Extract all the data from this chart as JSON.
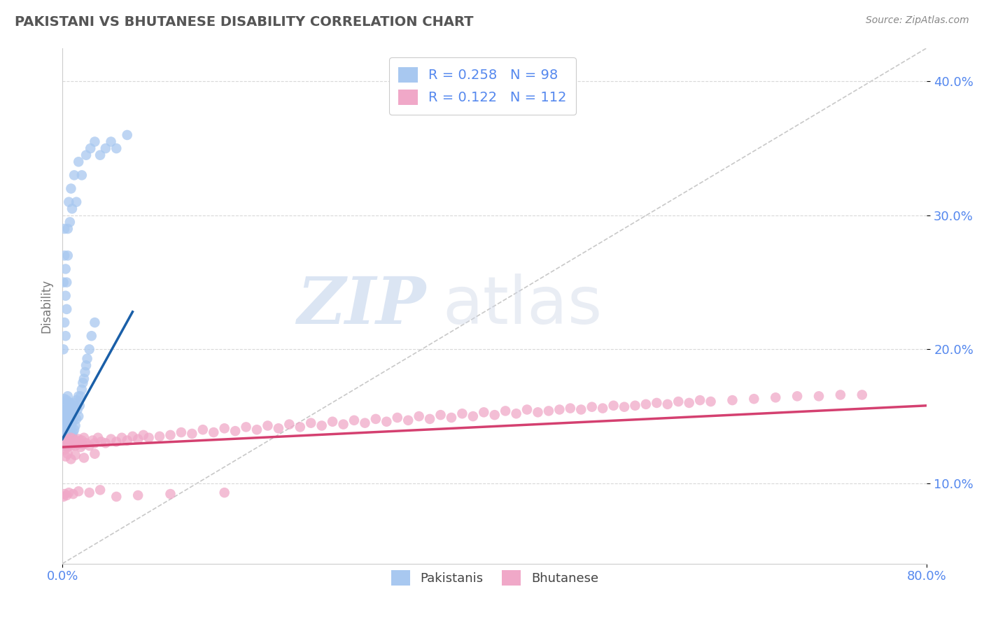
{
  "title": "PAKISTANI VS BHUTANESE DISABILITY CORRELATION CHART",
  "source": "Source: ZipAtlas.com",
  "xmin": 0.0,
  "xmax": 0.8,
  "ymin": 0.04,
  "ymax": 0.425,
  "pakistani_color": "#a8c8f0",
  "bhutanese_color": "#f0a8c8",
  "pakistani_line_color": "#1a5fa8",
  "bhutanese_line_color": "#d44070",
  "pakistani_R": 0.258,
  "pakistani_N": 98,
  "bhutanese_R": 0.122,
  "bhutanese_N": 112,
  "legend_label_1": "Pakistanis",
  "legend_label_2": "Bhutanese",
  "watermark_zip": "ZIP",
  "watermark_atlas": "atlas",
  "background_color": "#ffffff",
  "grid_color": "#d8d8d8",
  "title_color": "#555555",
  "axis_label_color": "#5588ee",
  "ylabel": "Disability",
  "diag_color": "#bbbbbb",
  "pakistani_x": [
    0.001,
    0.001,
    0.001,
    0.001,
    0.002,
    0.002,
    0.002,
    0.002,
    0.002,
    0.002,
    0.002,
    0.002,
    0.003,
    0.003,
    0.003,
    0.003,
    0.003,
    0.003,
    0.003,
    0.004,
    0.004,
    0.004,
    0.004,
    0.004,
    0.004,
    0.004,
    0.005,
    0.005,
    0.005,
    0.005,
    0.005,
    0.005,
    0.006,
    0.006,
    0.006,
    0.006,
    0.006,
    0.007,
    0.007,
    0.007,
    0.007,
    0.008,
    0.008,
    0.008,
    0.009,
    0.009,
    0.009,
    0.01,
    0.01,
    0.01,
    0.011,
    0.011,
    0.012,
    0.012,
    0.013,
    0.013,
    0.014,
    0.015,
    0.015,
    0.016,
    0.017,
    0.018,
    0.019,
    0.02,
    0.021,
    0.022,
    0.023,
    0.025,
    0.027,
    0.03,
    0.001,
    0.001,
    0.002,
    0.002,
    0.002,
    0.003,
    0.003,
    0.003,
    0.004,
    0.004,
    0.005,
    0.005,
    0.006,
    0.007,
    0.008,
    0.009,
    0.011,
    0.013,
    0.015,
    0.018,
    0.022,
    0.026,
    0.03,
    0.035,
    0.04,
    0.045,
    0.05,
    0.06
  ],
  "pakistani_y": [
    0.13,
    0.14,
    0.145,
    0.15,
    0.128,
    0.133,
    0.138,
    0.143,
    0.148,
    0.153,
    0.158,
    0.163,
    0.13,
    0.135,
    0.14,
    0.145,
    0.15,
    0.155,
    0.16,
    0.128,
    0.133,
    0.138,
    0.143,
    0.148,
    0.155,
    0.162,
    0.13,
    0.135,
    0.14,
    0.148,
    0.155,
    0.165,
    0.132,
    0.138,
    0.145,
    0.152,
    0.16,
    0.133,
    0.14,
    0.15,
    0.16,
    0.135,
    0.143,
    0.155,
    0.136,
    0.145,
    0.157,
    0.138,
    0.148,
    0.16,
    0.14,
    0.155,
    0.143,
    0.158,
    0.148,
    0.162,
    0.155,
    0.15,
    0.165,
    0.158,
    0.165,
    0.17,
    0.175,
    0.178,
    0.183,
    0.188,
    0.193,
    0.2,
    0.21,
    0.22,
    0.2,
    0.25,
    0.22,
    0.27,
    0.29,
    0.21,
    0.24,
    0.26,
    0.23,
    0.25,
    0.27,
    0.29,
    0.31,
    0.295,
    0.32,
    0.305,
    0.33,
    0.31,
    0.34,
    0.33,
    0.345,
    0.35,
    0.355,
    0.345,
    0.35,
    0.355,
    0.35,
    0.36
  ],
  "bhutanese_x": [
    0.001,
    0.002,
    0.003,
    0.004,
    0.005,
    0.006,
    0.007,
    0.008,
    0.009,
    0.01,
    0.011,
    0.012,
    0.013,
    0.014,
    0.015,
    0.016,
    0.017,
    0.018,
    0.019,
    0.02,
    0.022,
    0.025,
    0.028,
    0.03,
    0.033,
    0.036,
    0.04,
    0.045,
    0.05,
    0.055,
    0.06,
    0.065,
    0.07,
    0.075,
    0.08,
    0.09,
    0.1,
    0.11,
    0.12,
    0.13,
    0.14,
    0.15,
    0.16,
    0.17,
    0.18,
    0.19,
    0.2,
    0.21,
    0.22,
    0.23,
    0.24,
    0.25,
    0.26,
    0.27,
    0.28,
    0.29,
    0.3,
    0.31,
    0.32,
    0.33,
    0.34,
    0.35,
    0.36,
    0.37,
    0.38,
    0.39,
    0.4,
    0.41,
    0.42,
    0.43,
    0.44,
    0.45,
    0.46,
    0.47,
    0.48,
    0.49,
    0.5,
    0.51,
    0.52,
    0.53,
    0.54,
    0.55,
    0.56,
    0.57,
    0.58,
    0.59,
    0.6,
    0.62,
    0.64,
    0.66,
    0.68,
    0.7,
    0.72,
    0.74,
    0.003,
    0.005,
    0.008,
    0.012,
    0.02,
    0.03,
    0.001,
    0.002,
    0.004,
    0.006,
    0.01,
    0.015,
    0.025,
    0.035,
    0.05,
    0.07,
    0.1,
    0.15
  ],
  "bhutanese_y": [
    0.13,
    0.125,
    0.128,
    0.133,
    0.127,
    0.132,
    0.129,
    0.134,
    0.128,
    0.133,
    0.13,
    0.128,
    0.132,
    0.129,
    0.133,
    0.13,
    0.127,
    0.132,
    0.129,
    0.134,
    0.13,
    0.128,
    0.132,
    0.13,
    0.134,
    0.131,
    0.13,
    0.133,
    0.131,
    0.134,
    0.132,
    0.135,
    0.133,
    0.136,
    0.134,
    0.135,
    0.136,
    0.138,
    0.137,
    0.14,
    0.138,
    0.141,
    0.139,
    0.142,
    0.14,
    0.143,
    0.141,
    0.144,
    0.142,
    0.145,
    0.143,
    0.146,
    0.144,
    0.147,
    0.145,
    0.148,
    0.146,
    0.149,
    0.147,
    0.15,
    0.148,
    0.151,
    0.149,
    0.152,
    0.15,
    0.153,
    0.151,
    0.154,
    0.152,
    0.155,
    0.153,
    0.154,
    0.155,
    0.156,
    0.155,
    0.157,
    0.156,
    0.158,
    0.157,
    0.158,
    0.159,
    0.16,
    0.159,
    0.161,
    0.16,
    0.162,
    0.161,
    0.162,
    0.163,
    0.164,
    0.165,
    0.165,
    0.166,
    0.166,
    0.12,
    0.122,
    0.118,
    0.121,
    0.119,
    0.122,
    0.09,
    0.092,
    0.091,
    0.093,
    0.092,
    0.094,
    0.093,
    0.095,
    0.09,
    0.091,
    0.092,
    0.093
  ]
}
